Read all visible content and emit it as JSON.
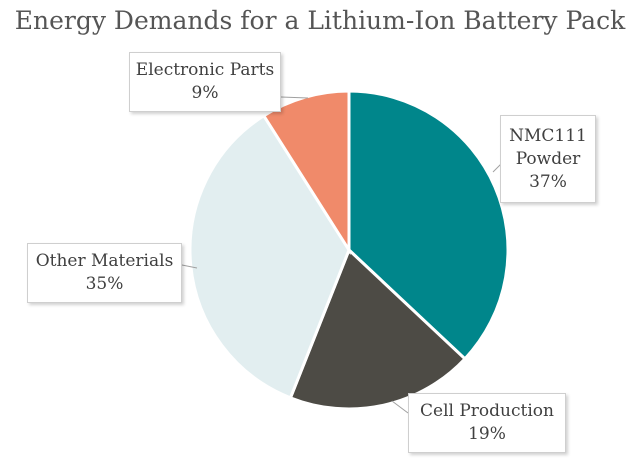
{
  "chart_data": {
    "type": "pie",
    "title": "Energy Demands for a Lithium-Ion Battery Pack",
    "slices": [
      {
        "label": "NMC111\nPowder",
        "value_label": "37%",
        "value": 37,
        "color": "#00868B"
      },
      {
        "label": "Cell Production",
        "value_label": "19%",
        "value": 19,
        "color": "#4D4B45"
      },
      {
        "label": "Other Materials",
        "value_label": "35%",
        "value": 35,
        "color": "#E2EEF0"
      },
      {
        "label": "Electronic Parts",
        "value_label": "9%",
        "value": 9,
        "color": "#F08A6A"
      }
    ],
    "legend": "none"
  }
}
